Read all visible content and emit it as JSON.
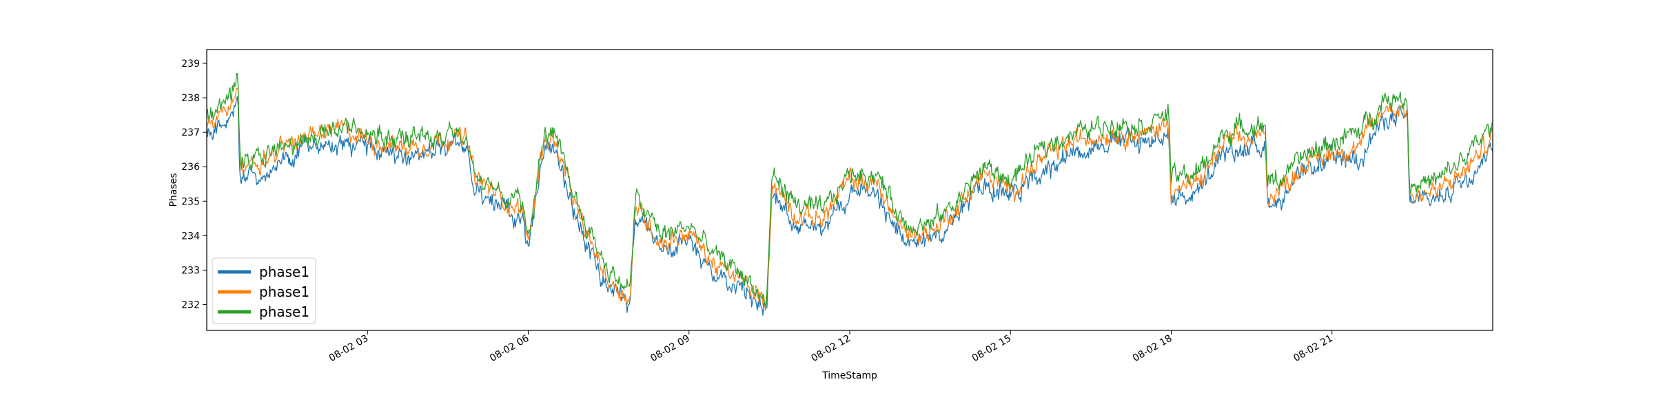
{
  "chart_data": {
    "type": "line",
    "title": "",
    "xlabel": "TimeStamp",
    "ylabel": "Phases",
    "xlim_hours": [
      0,
      24
    ],
    "ylim": [
      231.25,
      239.4
    ],
    "x_ticks": [
      {
        "hour": 3,
        "label": "08-02 03"
      },
      {
        "hour": 6,
        "label": "08-02 06"
      },
      {
        "hour": 9,
        "label": "08-02 09"
      },
      {
        "hour": 12,
        "label": "08-02 12"
      },
      {
        "hour": 15,
        "label": "08-02 15"
      },
      {
        "hour": 18,
        "label": "08-02 18"
      },
      {
        "hour": 21,
        "label": "08-02 21"
      }
    ],
    "y_ticks": [
      232,
      233,
      234,
      235,
      236,
      237,
      238,
      239
    ],
    "legend_position": "lower-left",
    "grid": false,
    "x": [
      0,
      0.5,
      0.58,
      0.62,
      1.0,
      1.5,
      2.0,
      2.5,
      3.0,
      3.5,
      4.0,
      4.5,
      4.85,
      5.0,
      5.5,
      5.9,
      6.0,
      6.3,
      6.5,
      7.0,
      7.5,
      7.9,
      8.0,
      8.5,
      9.0,
      9.5,
      10.0,
      10.45,
      10.55,
      11.0,
      11.5,
      12.0,
      12.5,
      13.0,
      13.5,
      14.0,
      14.5,
      15.0,
      15.5,
      16.0,
      16.5,
      17.0,
      17.5,
      17.95,
      18.0,
      18.5,
      19.0,
      19.5,
      19.75,
      19.8,
      20.0,
      20.5,
      21.0,
      21.5,
      22.0,
      22.4,
      22.45,
      23.0,
      23.5,
      24.0
    ],
    "series": [
      {
        "name": "phase1",
        "color": "#1f77b4",
        "values": [
          237.0,
          237.6,
          238.0,
          235.6,
          235.7,
          236.2,
          236.6,
          236.7,
          236.5,
          236.3,
          236.3,
          236.6,
          236.7,
          235.4,
          234.8,
          234.3,
          233.5,
          236.6,
          236.5,
          234.0,
          232.4,
          232.0,
          234.6,
          233.5,
          233.8,
          232.8,
          232.5,
          231.8,
          235.4,
          234.3,
          234.2,
          235.3,
          235.2,
          233.8,
          233.8,
          234.5,
          235.6,
          235.1,
          235.8,
          236.3,
          236.6,
          236.8,
          236.7,
          237.0,
          235.1,
          235.2,
          236.4,
          236.6,
          236.6,
          235.0,
          235.0,
          235.8,
          236.2,
          236.3,
          237.4,
          237.4,
          235.0,
          235.1,
          235.7,
          236.6
        ]
      },
      {
        "name": "phase1",
        "color": "#ff7f0e",
        "values": [
          237.3,
          237.9,
          238.4,
          236.0,
          236.1,
          236.7,
          237.0,
          237.1,
          236.8,
          236.6,
          236.6,
          236.9,
          236.8,
          235.7,
          235.1,
          234.7,
          233.8,
          236.9,
          236.7,
          234.3,
          232.7,
          232.2,
          234.9,
          233.8,
          234.1,
          233.1,
          232.7,
          232.0,
          235.6,
          234.6,
          234.5,
          235.6,
          235.5,
          234.1,
          234.1,
          234.8,
          235.8,
          235.3,
          236.1,
          236.6,
          236.9,
          237.0,
          236.9,
          237.3,
          235.3,
          235.5,
          236.7,
          236.8,
          236.9,
          235.2,
          235.3,
          236.1,
          236.4,
          236.6,
          237.7,
          237.7,
          235.2,
          235.3,
          235.9,
          236.9
        ]
      },
      {
        "name": "phase1",
        "color": "#2ca02c",
        "values": [
          237.5,
          238.1,
          238.7,
          236.2,
          236.2,
          236.7,
          236.9,
          237.2,
          237.0,
          236.8,
          236.9,
          236.9,
          236.8,
          235.8,
          235.3,
          234.9,
          234.0,
          237.1,
          236.8,
          234.6,
          233.0,
          232.4,
          235.1,
          234.0,
          234.3,
          233.4,
          232.9,
          232.0,
          235.8,
          234.9,
          234.7,
          235.8,
          235.8,
          234.4,
          234.3,
          235.0,
          236.0,
          235.6,
          236.4,
          236.9,
          237.1,
          237.3,
          237.2,
          237.6,
          235.7,
          235.8,
          237.0,
          237.2,
          237.2,
          235.6,
          235.6,
          236.3,
          236.7,
          237.0,
          238.0,
          238.0,
          235.5,
          235.6,
          236.3,
          237.2
        ]
      }
    ]
  }
}
